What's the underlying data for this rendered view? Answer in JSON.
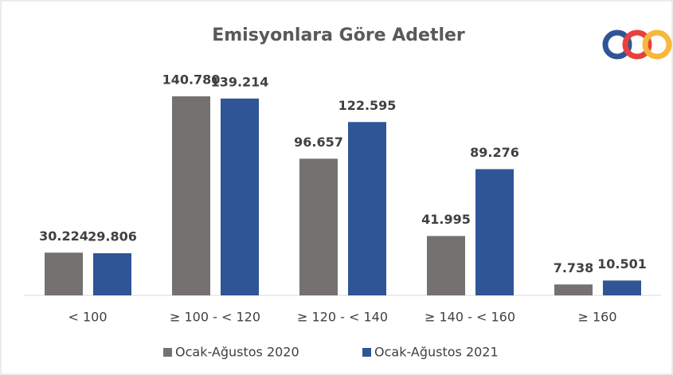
{
  "chart_data": {
    "type": "bar",
    "title": "Emisyonlara Göre Adetler",
    "categories": [
      "< 100",
      "≥ 100 - < 120",
      "≥ 120 - < 140",
      "≥ 140 - < 160",
      "≥  160"
    ],
    "series": [
      {
        "name": "Ocak-Ağustos 2020",
        "color": "#767171",
        "values": [
          30224,
          140780,
          96657,
          41995,
          7738
        ],
        "value_labels": [
          "30.224",
          "140.780",
          "96.657",
          "41.995",
          "7.738"
        ]
      },
      {
        "name": "Ocak-Ağustos 2021",
        "color": "#2f5597",
        "values": [
          29806,
          139214,
          122595,
          89276,
          10501
        ],
        "value_labels": [
          "29.806",
          "139.214",
          "122.595",
          "89.276",
          "10.501"
        ]
      }
    ],
    "ylim": [
      0,
      150000
    ],
    "legend": "bottom"
  }
}
